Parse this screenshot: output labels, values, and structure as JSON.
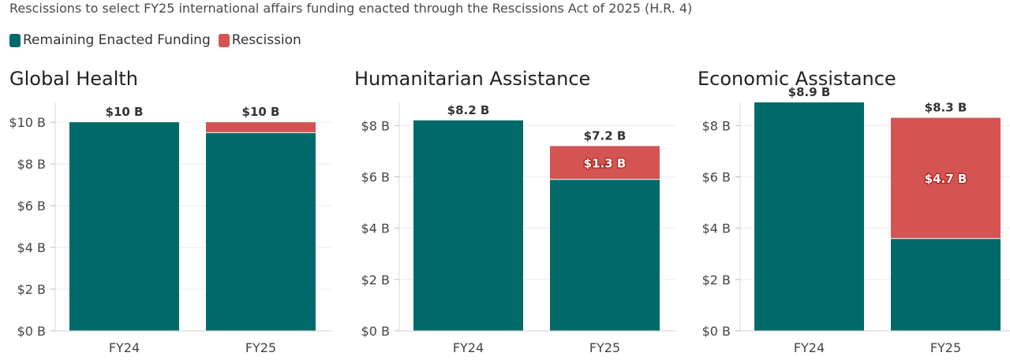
{
  "subtitle": "Rescissions to select FY25 international affairs funding enacted through the Rescissions Act of 2025 (H.R. 4)",
  "legend": [
    {
      "label": "Remaining Enacted Funding",
      "color": "#006a6b"
    },
    {
      "label": "Rescission",
      "color": "#d35452"
    }
  ],
  "chart_data": [
    {
      "type": "bar",
      "title": "Global Health",
      "categories": [
        "FY24",
        "FY25"
      ],
      "series": [
        {
          "name": "Remaining Enacted Funding",
          "values": [
            10.0,
            9.5
          ]
        },
        {
          "name": "Rescission",
          "values": [
            0,
            0.5
          ]
        }
      ],
      "total_labels": [
        "$10 B",
        "$10 B"
      ],
      "rescission_labels": [
        "",
        ""
      ],
      "yticks": [
        0,
        2,
        4,
        6,
        8,
        10
      ],
      "ytick_labels": [
        "$0 B",
        "$2 B",
        "$4 B",
        "$6 B",
        "$8 B",
        "$10 B"
      ],
      "ylim": [
        0,
        10.95
      ],
      "grid": true
    },
    {
      "type": "bar",
      "title": "Humanitarian Assistance",
      "categories": [
        "FY24",
        "FY25"
      ],
      "series": [
        {
          "name": "Remaining Enacted Funding",
          "values": [
            8.2,
            5.9
          ]
        },
        {
          "name": "Rescission",
          "values": [
            0,
            1.3
          ]
        }
      ],
      "total_labels": [
        "$8.2 B",
        "$7.2 B"
      ],
      "rescission_labels": [
        "",
        "$1.3 B"
      ],
      "yticks": [
        0,
        2,
        4,
        6,
        8
      ],
      "ytick_labels": [
        "$0 B",
        "$2 B",
        "$4 B",
        "$6 B",
        "$8 B"
      ],
      "ylim": [
        0,
        8.9
      ],
      "grid": true
    },
    {
      "type": "bar",
      "title": "Economic Assistance",
      "categories": [
        "FY24",
        "FY25"
      ],
      "series": [
        {
          "name": "Remaining Enacted Funding",
          "values": [
            8.9,
            3.6
          ]
        },
        {
          "name": "Rescission",
          "values": [
            0,
            4.7
          ]
        }
      ],
      "total_labels": [
        "$8.9 B",
        "$8.3 B"
      ],
      "rescission_labels": [
        "",
        "$4.7 B"
      ],
      "yticks": [
        0,
        2,
        4,
        6,
        8
      ],
      "ytick_labels": [
        "$0 B",
        "$2 B",
        "$4 B",
        "$6 B",
        "$8 B"
      ],
      "ylim": [
        0,
        8.9
      ],
      "grid": true
    }
  ]
}
